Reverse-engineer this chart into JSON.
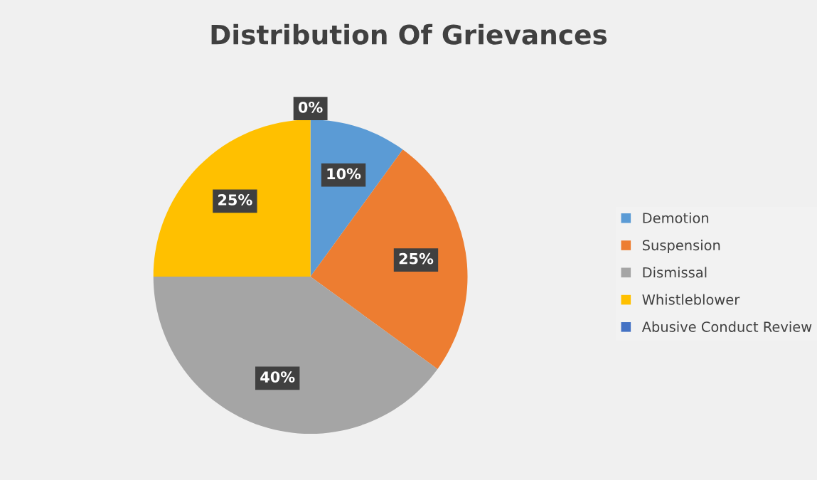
{
  "chart_data": {
    "type": "pie",
    "title": "Distribution Of Grievances",
    "categories": [
      "Demotion",
      "Suspension",
      "Dismissal",
      "Whistleblower",
      "Abusive Conduct Review"
    ],
    "values": [
      10,
      25,
      40,
      25,
      0
    ],
    "colors": [
      "#5b9bd5",
      "#ed7d31",
      "#a5a5a5",
      "#ffc000",
      "#4472c4"
    ],
    "value_labels": [
      "10%",
      "25%",
      "40%",
      "25%",
      "0%"
    ],
    "legend": "right"
  }
}
